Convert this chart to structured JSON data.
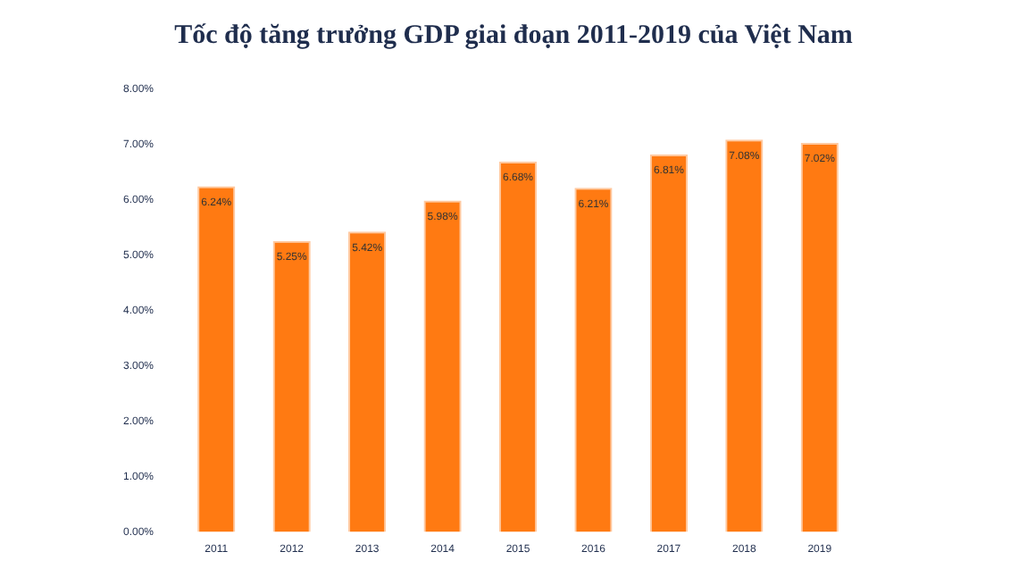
{
  "chart_data": {
    "type": "bar",
    "title": "Tốc độ tăng trưởng GDP giai đoạn 2011-2019 của Việt Nam",
    "categories": [
      "2011",
      "2012",
      "2013",
      "2014",
      "2015",
      "2016",
      "2017",
      "2018",
      "2019"
    ],
    "values": [
      6.24,
      5.25,
      5.42,
      5.98,
      6.68,
      6.21,
      6.81,
      7.08,
      7.02
    ],
    "value_labels": [
      "6.24%",
      "5.25%",
      "5.42%",
      "5.98%",
      "6.68%",
      "6.21%",
      "6.81%",
      "7.08%",
      "7.02%"
    ],
    "color": "#ff7a12",
    "ylim": [
      0,
      8
    ],
    "yticks": [
      {
        "value": 0,
        "label": "0.00%"
      },
      {
        "value": 1,
        "label": "1.00%"
      },
      {
        "value": 2,
        "label": "2.00%"
      },
      {
        "value": 3,
        "label": "3.00%"
      },
      {
        "value": 4,
        "label": "4.00%"
      },
      {
        "value": 5,
        "label": "5.00%"
      },
      {
        "value": 6,
        "label": "6.00%"
      },
      {
        "value": 7,
        "label": "7.00%"
      },
      {
        "value": 8,
        "label": "8.00%"
      }
    ],
    "grid": false
  }
}
